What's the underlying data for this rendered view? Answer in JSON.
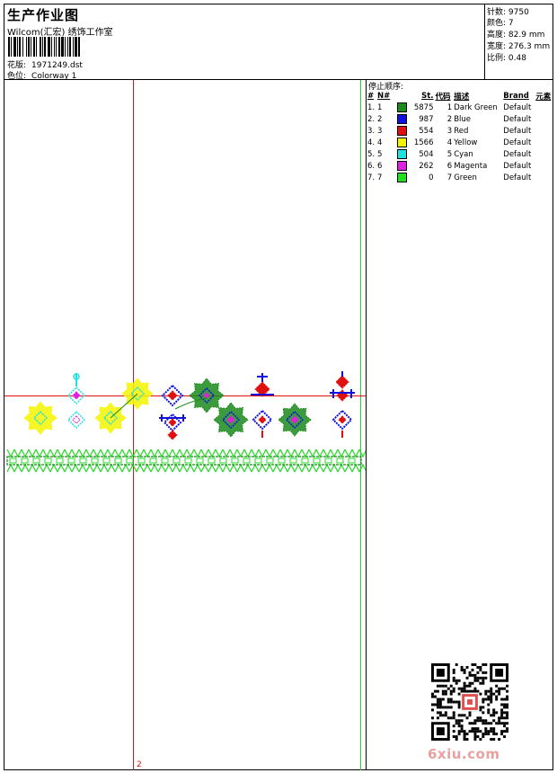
{
  "header": {
    "title": "生产作业图",
    "company": "Wilcom(汇宏) 绣饰工作室",
    "design_label": "花版:",
    "design_value": "1971249.dst",
    "colorway_label": "色位:",
    "colorway_value": "Colorway 1"
  },
  "stats": {
    "stitches_label": "针数:",
    "stitches_value": "9750",
    "colors_label": "颜色:",
    "colors_value": "7",
    "height_label": "高度:",
    "height_value": "82.9 mm",
    "width_label": "宽度:",
    "width_value": "276.3 mm",
    "scale_label": "比例:",
    "scale_value": "0.48"
  },
  "stop_sequence": {
    "title": "停止顺序:",
    "columns": [
      "#",
      "N#",
      "St.",
      "代码",
      "描述",
      "Brand",
      "元素"
    ],
    "rows": [
      {
        "n": "1.",
        "nn": "1",
        "color": "#1a8a1a",
        "st": "5875",
        "code": "1",
        "desc": "Dark Green",
        "brand": "Default"
      },
      {
        "n": "2.",
        "nn": "2",
        "color": "#1010e0",
        "st": "987",
        "code": "2",
        "desc": "Blue",
        "brand": "Default"
      },
      {
        "n": "3.",
        "nn": "3",
        "color": "#e01010",
        "st": "554",
        "code": "3",
        "desc": "Red",
        "brand": "Default"
      },
      {
        "n": "4.",
        "nn": "4",
        "color": "#f5f500",
        "st": "1566",
        "code": "4",
        "desc": "Yellow",
        "brand": "Default"
      },
      {
        "n": "5.",
        "nn": "5",
        "color": "#20e0e0",
        "st": "504",
        "code": "5",
        "desc": "Cyan",
        "brand": "Default"
      },
      {
        "n": "6.",
        "nn": "6",
        "color": "#e020e0",
        "st": "262",
        "code": "6",
        "desc": "Magenta",
        "brand": "Default"
      },
      {
        "n": "7.",
        "nn": "7",
        "color": "#20e020",
        "st": "0",
        "code": "7",
        "desc": "Green",
        "brand": "Default"
      }
    ]
  },
  "guide_marker": "2",
  "watermark": "6xiu.com"
}
